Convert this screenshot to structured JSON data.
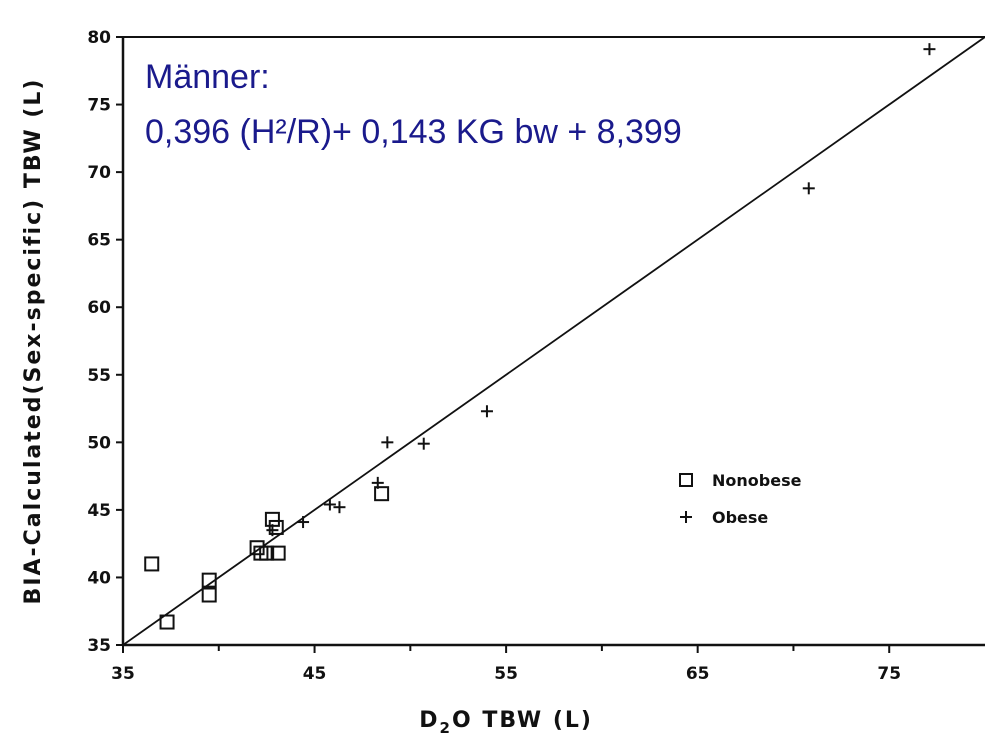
{
  "chart_data": {
    "type": "scatter",
    "xlabel_main": "D",
    "xlabel_sub": "2",
    "xlabel_rest": "O TBW (L)",
    "ylabel": "BIA-Calculated(Sex-specific) TBW (L)",
    "xlim": [
      35,
      80
    ],
    "ylim": [
      35,
      80
    ],
    "xticks": [
      35,
      45,
      55,
      65,
      75
    ],
    "yticks": [
      35,
      40,
      45,
      50,
      55,
      60,
      65,
      70,
      75,
      80
    ],
    "x_minor_ticks": [
      40,
      50,
      60,
      70,
      80
    ],
    "annotation_line1": "Männer:",
    "annotation_line2": "0,396 (H²/R)+ 0,143 KG bw + 8,399",
    "annotation_color": "#1a1a8c",
    "reference_line": {
      "from": [
        35,
        35
      ],
      "to": [
        80,
        80
      ]
    },
    "legend_position": "middle-right",
    "series": [
      {
        "name": "Nonobese",
        "marker": "square",
        "points": [
          [
            36.5,
            41.0
          ],
          [
            37.3,
            36.7
          ],
          [
            39.5,
            39.8
          ],
          [
            39.5,
            38.7
          ],
          [
            42.0,
            42.2
          ],
          [
            42.2,
            41.8
          ],
          [
            42.5,
            41.8
          ],
          [
            42.8,
            44.3
          ],
          [
            43.0,
            43.7
          ],
          [
            43.1,
            41.8
          ],
          [
            48.5,
            46.2
          ]
        ]
      },
      {
        "name": "Obese",
        "marker": "plus",
        "points": [
          [
            42.8,
            43.5
          ],
          [
            44.4,
            44.1
          ],
          [
            45.8,
            45.4
          ],
          [
            46.3,
            45.2
          ],
          [
            48.3,
            47.0
          ],
          [
            48.8,
            50.0
          ],
          [
            50.7,
            49.9
          ],
          [
            54.0,
            52.3
          ],
          [
            70.8,
            68.8
          ],
          [
            77.1,
            79.1
          ]
        ]
      }
    ]
  }
}
